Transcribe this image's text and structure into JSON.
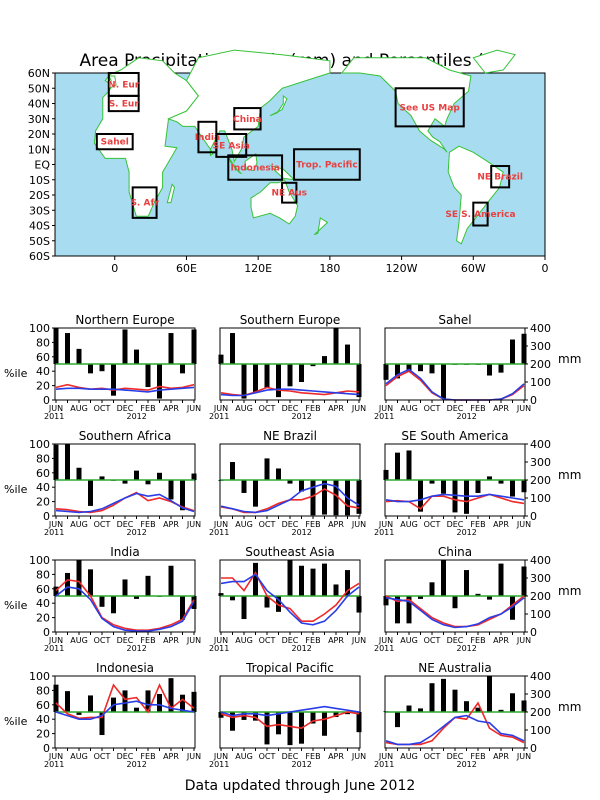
{
  "title": "Area Precipitation Totals (mm) and Percentiles (%)",
  "footer": "Data updated through June 2012",
  "colors": {
    "ocean": "#a8dcf0",
    "land": "#ffffff",
    "coast": "#36c236",
    "region_label": "#e84040",
    "bars": "#000000",
    "reference_line": "#2ea82e",
    "red_line": "#ee2a2a",
    "blue_line": "#2a3ee8"
  },
  "map": {
    "lat_labels": [
      "60N",
      "50N",
      "40N",
      "30N",
      "20N",
      "10N",
      "EQ",
      "10S",
      "20S",
      "30S",
      "40S",
      "50S",
      "60S"
    ],
    "lon_labels": [
      "0",
      "60E",
      "120E",
      "180",
      "120W",
      "60W",
      "0"
    ],
    "regions": [
      {
        "label": "N. Eur",
        "lon": [
          -5,
          20
        ],
        "lat": [
          45,
          60
        ]
      },
      {
        "label": "S. Eur",
        "lon": [
          -5,
          20
        ],
        "lat": [
          35,
          45
        ]
      },
      {
        "label": "Sahel",
        "lon": [
          -15,
          15
        ],
        "lat": [
          10,
          20
        ]
      },
      {
        "label": "S. Afr",
        "lon": [
          15,
          35
        ],
        "lat": [
          -35,
          -15
        ]
      },
      {
        "label": "India",
        "lon": [
          70,
          85
        ],
        "lat": [
          8,
          28
        ]
      },
      {
        "label": "SE Asia",
        "lon": [
          85,
          110
        ],
        "lat": [
          5,
          20
        ]
      },
      {
        "label": "China",
        "lon": [
          100,
          122
        ],
        "lat": [
          23,
          37
        ]
      },
      {
        "label": "Indonesia",
        "lon": [
          95,
          140
        ],
        "lat": [
          -10,
          6
        ]
      },
      {
        "label": "Trop. Pacific",
        "lon": [
          150,
          205
        ],
        "lat": [
          -10,
          10
        ]
      },
      {
        "label": "NE Aus",
        "lon": [
          140,
          152
        ],
        "lat": [
          -25,
          -12
        ]
      },
      {
        "label": "See US Map",
        "lon": [
          235,
          292
        ],
        "lat": [
          25,
          50
        ]
      },
      {
        "label": "NE Brazil",
        "lon": [
          315,
          330
        ],
        "lat": [
          -15,
          -1
        ]
      },
      {
        "label": "SE S. America",
        "lon": [
          300,
          312
        ],
        "lat": [
          -40,
          -25
        ]
      }
    ]
  },
  "panel_axis": {
    "left_ylabel": "%ile",
    "right_ylabel": "mm",
    "left_ticks": [
      "0",
      "20",
      "40",
      "60",
      "80",
      "100"
    ],
    "right_ticks": [
      "0",
      "100",
      "200",
      "300",
      "400"
    ],
    "x_tick_labels": [
      "JUN",
      "AUG",
      "OCT",
      "DEC",
      "FEB",
      "APR",
      "JUN"
    ],
    "year_labels": [
      "2011",
      "2012"
    ]
  },
  "chart_data": [
    {
      "type": "bar",
      "title": "Northern Europe",
      "x": [
        "JUN",
        "JUL",
        "AUG",
        "SEP",
        "OCT",
        "NOV",
        "DEC",
        "JAN",
        "FEB",
        "MAR",
        "APR",
        "MAY",
        "JUN"
      ],
      "ylim": [
        0,
        100
      ],
      "y2lim": [
        0,
        400
      ],
      "percentile": [
        100,
        93,
        71,
        37,
        40,
        6,
        98,
        70,
        18,
        2,
        93,
        37,
        98
      ],
      "series": [
        {
          "color": "red",
          "values": [
            70,
            85,
            70,
            60,
            65,
            55,
            65,
            60,
            55,
            75,
            65,
            70,
            85
          ]
        },
        {
          "color": "blue",
          "values": [
            60,
            65,
            65,
            60,
            60,
            60,
            55,
            50,
            45,
            55,
            60,
            65,
            70
          ]
        }
      ]
    },
    {
      "type": "bar",
      "title": "Southern Europe",
      "x": [
        "JUN",
        "JUL",
        "AUG",
        "SEP",
        "OCT",
        "NOV",
        "DEC",
        "JAN",
        "FEB",
        "MAR",
        "APR",
        "MAY",
        "JUN"
      ],
      "ylim": [
        0,
        100
      ],
      "y2lim": [
        0,
        400
      ],
      "percentile": [
        63,
        93,
        2,
        10,
        17,
        4,
        19,
        25,
        47,
        61,
        100,
        77,
        4
      ],
      "series": [
        {
          "color": "red",
          "values": [
            40,
            30,
            25,
            45,
            70,
            55,
            50,
            40,
            35,
            30,
            40,
            50,
            45
          ]
        },
        {
          "color": "blue",
          "values": [
            30,
            25,
            25,
            40,
            55,
            60,
            60,
            55,
            50,
            45,
            40,
            35,
            30
          ]
        }
      ]
    },
    {
      "type": "bar",
      "title": "Sahel",
      "x": [
        "JUN",
        "JUL",
        "AUG",
        "SEP",
        "OCT",
        "NOV",
        "DEC",
        "JAN",
        "FEB",
        "MAR",
        "APR",
        "MAY",
        "JUN"
      ],
      "ylim": [
        0,
        100
      ],
      "y2lim": [
        0,
        400
      ],
      "percentile": [
        28,
        30,
        39,
        40,
        37,
        2,
        50,
        50,
        50,
        34,
        38,
        84,
        92
      ],
      "series": [
        {
          "color": "red",
          "values": [
            80,
            130,
            160,
            110,
            40,
            5,
            0,
            0,
            0,
            0,
            5,
            30,
            80
          ]
        },
        {
          "color": "blue",
          "values": [
            90,
            140,
            170,
            120,
            45,
            5,
            0,
            0,
            0,
            0,
            5,
            35,
            90
          ]
        }
      ]
    },
    {
      "type": "bar",
      "title": "Southern Africa",
      "x": [
        "JUN",
        "JUL",
        "AUG",
        "SEP",
        "OCT",
        "NOV",
        "DEC",
        "JAN",
        "FEB",
        "MAR",
        "APR",
        "MAY",
        "JUN"
      ],
      "ylim": [
        0,
        100
      ],
      "y2lim": [
        0,
        400
      ],
      "percentile": [
        99,
        100,
        67,
        14,
        55,
        50,
        45,
        63,
        44,
        60,
        23,
        8,
        59
      ],
      "series": [
        {
          "color": "red",
          "values": [
            40,
            35,
            25,
            20,
            30,
            60,
            100,
            130,
            85,
            100,
            80,
            50,
            30
          ]
        },
        {
          "color": "blue",
          "values": [
            30,
            25,
            20,
            25,
            40,
            70,
            100,
            125,
            110,
            120,
            85,
            45,
            25
          ]
        }
      ]
    },
    {
      "type": "bar",
      "title": "NE Brazil",
      "x": [
        "JUN",
        "JUL",
        "AUG",
        "SEP",
        "OCT",
        "NOV",
        "DEC",
        "JAN",
        "FEB",
        "MAR",
        "APR",
        "MAY",
        "JUN"
      ],
      "ylim": [
        0,
        100
      ],
      "y2lim": [
        0,
        400
      ],
      "percentile": [
        49,
        75,
        32,
        13,
        80,
        66,
        45,
        34,
        1,
        2,
        1,
        1,
        3
      ],
      "series": [
        {
          "color": "red",
          "values": [
            50,
            40,
            20,
            20,
            40,
            70,
            90,
            90,
            110,
            150,
            115,
            55,
            45
          ]
        },
        {
          "color": "blue",
          "values": [
            55,
            40,
            25,
            20,
            30,
            60,
            90,
            140,
            160,
            180,
            165,
            100,
            60
          ]
        }
      ]
    },
    {
      "type": "bar",
      "title": "SE South America",
      "x": [
        "JUN",
        "JUL",
        "AUG",
        "SEP",
        "OCT",
        "NOV",
        "DEC",
        "JAN",
        "FEB",
        "MAR",
        "APR",
        "MAY",
        "JUN"
      ],
      "ylim": [
        0,
        100
      ],
      "y2lim": [
        0,
        400
      ],
      "percentile": [
        64,
        88,
        91,
        6,
        45,
        31,
        5,
        3,
        32,
        55,
        45,
        27,
        33
      ],
      "series": [
        {
          "color": "red",
          "values": [
            80,
            85,
            80,
            40,
            110,
            110,
            90,
            80,
            100,
            120,
            100,
            80,
            70
          ]
        },
        {
          "color": "blue",
          "values": [
            90,
            80,
            80,
            90,
            110,
            120,
            115,
            110,
            110,
            120,
            110,
            100,
            90
          ]
        }
      ]
    },
    {
      "type": "bar",
      "title": "India",
      "x": [
        "JUN",
        "JUL",
        "AUG",
        "SEP",
        "OCT",
        "NOV",
        "DEC",
        "JAN",
        "FEB",
        "MAR",
        "APR",
        "MAY",
        "JUN"
      ],
      "ylim": [
        0,
        100
      ],
      "y2lim": [
        0,
        400
      ],
      "percentile": [
        63,
        82,
        100,
        87,
        35,
        26,
        73,
        46,
        78,
        49,
        92,
        17,
        32
      ],
      "series": [
        {
          "color": "red",
          "values": [
            230,
            290,
            280,
            200,
            80,
            40,
            20,
            10,
            10,
            20,
            40,
            70,
            180
          ]
        },
        {
          "color": "blue",
          "values": [
            200,
            250,
            240,
            180,
            75,
            30,
            10,
            5,
            5,
            15,
            30,
            60,
            170
          ]
        }
      ]
    },
    {
      "type": "bar",
      "title": "Southeast Asia",
      "x": [
        "JUN",
        "JUL",
        "AUG",
        "SEP",
        "OCT",
        "NOV",
        "DEC",
        "JAN",
        "FEB",
        "MAR",
        "APR",
        "MAY",
        "JUN"
      ],
      "ylim": [
        0,
        100
      ],
      "y2lim": [
        0,
        400
      ],
      "percentile": [
        54,
        44,
        18,
        96,
        34,
        28,
        100,
        92,
        88,
        95,
        66,
        86,
        27
      ],
      "series": [
        {
          "color": "red",
          "values": [
            300,
            300,
            230,
            330,
            200,
            150,
            130,
            60,
            60,
            100,
            150,
            230,
            270
          ]
        },
        {
          "color": "blue",
          "values": [
            270,
            280,
            280,
            320,
            230,
            180,
            110,
            50,
            40,
            60,
            120,
            200,
            250
          ]
        }
      ]
    },
    {
      "type": "bar",
      "title": "China",
      "x": [
        "JUN",
        "JUL",
        "AUG",
        "SEP",
        "OCT",
        "NOV",
        "DEC",
        "JAN",
        "FEB",
        "MAR",
        "APR",
        "MAY",
        "JUN"
      ],
      "ylim": [
        0,
        100
      ],
      "y2lim": [
        0,
        400
      ],
      "percentile": [
        37,
        12,
        12,
        46,
        69,
        100,
        33,
        86,
        53,
        45,
        95,
        17,
        91
      ],
      "series": [
        {
          "color": "red",
          "values": [
            200,
            170,
            180,
            130,
            80,
            50,
            30,
            30,
            40,
            70,
            100,
            150,
            200
          ]
        },
        {
          "color": "blue",
          "values": [
            190,
            180,
            170,
            120,
            70,
            40,
            25,
            30,
            45,
            80,
            100,
            140,
            190
          ]
        }
      ]
    },
    {
      "type": "bar",
      "title": "Indonesia",
      "x": [
        "JUN",
        "JUL",
        "AUG",
        "SEP",
        "OCT",
        "NOV",
        "DEC",
        "JAN",
        "FEB",
        "MAR",
        "APR",
        "MAY",
        "JUN"
      ],
      "ylim": [
        0,
        100
      ],
      "y2lim": [
        0,
        400
      ],
      "percentile": [
        88,
        79,
        46,
        73,
        18,
        70,
        80,
        56,
        80,
        75,
        97,
        74,
        78
      ],
      "series": [
        {
          "color": "red",
          "values": [
            250,
            190,
            165,
            170,
            170,
            350,
            270,
            280,
            200,
            350,
            220,
            270,
            220
          ]
        },
        {
          "color": "blue",
          "values": [
            200,
            180,
            160,
            160,
            180,
            240,
            250,
            260,
            240,
            240,
            220,
            210,
            200
          ]
        }
      ]
    },
    {
      "type": "bar",
      "title": "Tropical Pacific",
      "x": [
        "JUN",
        "JUL",
        "AUG",
        "SEP",
        "OCT",
        "NOV",
        "DEC",
        "JAN",
        "FEB",
        "MAR",
        "APR",
        "MAY",
        "JUN"
      ],
      "ylim": [
        0,
        100
      ],
      "y2lim": [
        0,
        400
      ],
      "percentile": [
        42,
        24,
        39,
        38,
        5,
        19,
        4,
        6,
        34,
        17,
        43,
        47,
        22
      ],
      "series": [
        {
          "color": "red",
          "values": [
            190,
            170,
            180,
            170,
            120,
            130,
            120,
            110,
            150,
            160,
            180,
            200,
            190
          ]
        },
        {
          "color": "blue",
          "values": [
            200,
            180,
            190,
            190,
            180,
            190,
            200,
            210,
            220,
            230,
            220,
            210,
            200
          ]
        }
      ]
    },
    {
      "type": "bar",
      "title": "NE Australia",
      "x": [
        "JUN",
        "JUL",
        "AUG",
        "SEP",
        "OCT",
        "NOV",
        "DEC",
        "JAN",
        "FEB",
        "MAR",
        "APR",
        "MAY",
        "JUN"
      ],
      "ylim": [
        0,
        100
      ],
      "y2lim": [
        0,
        400
      ],
      "percentile": [
        51,
        29,
        59,
        55,
        90,
        96,
        81,
        65,
        56,
        100,
        53,
        76,
        66
      ],
      "series": [
        {
          "color": "red",
          "values": [
            30,
            20,
            20,
            20,
            40,
            110,
            170,
            160,
            250,
            110,
            70,
            60,
            30
          ]
        },
        {
          "color": "blue",
          "values": [
            40,
            20,
            20,
            30,
            70,
            120,
            170,
            180,
            150,
            140,
            80,
            70,
            40
          ]
        }
      ]
    }
  ]
}
